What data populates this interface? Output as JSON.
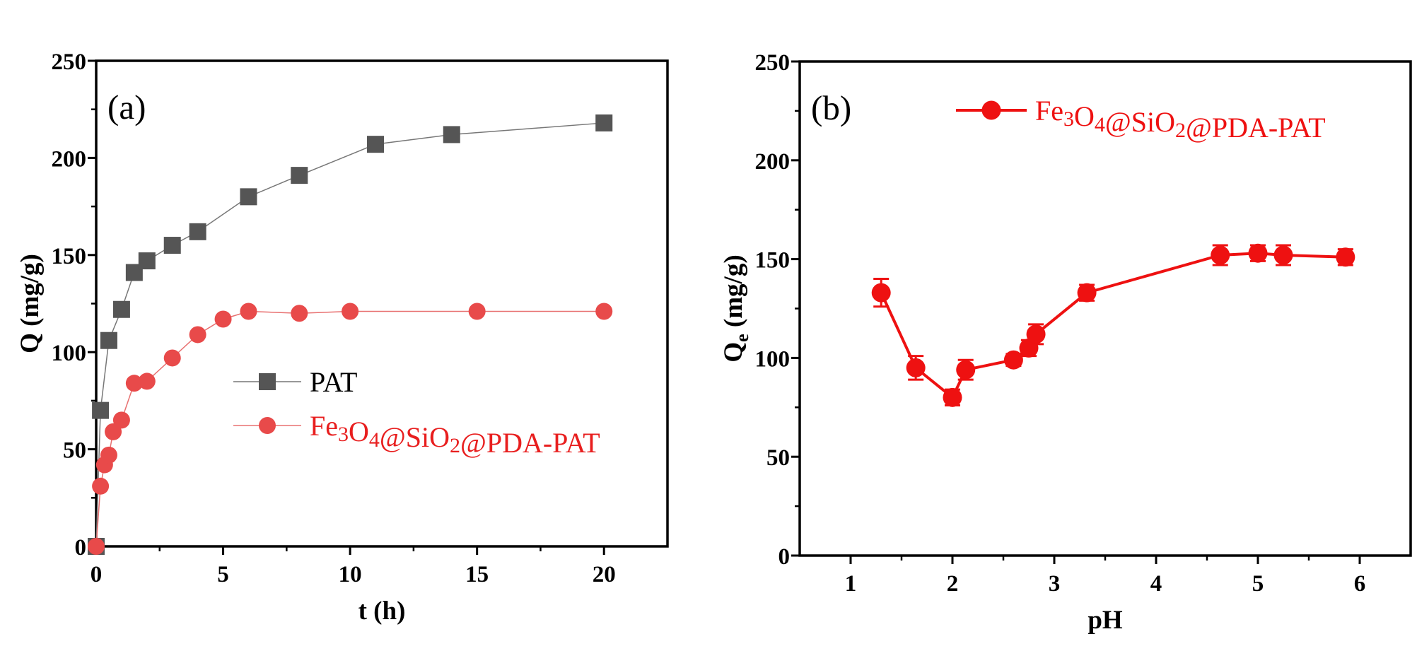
{
  "chart_data": [
    {
      "type": "line",
      "panel_label": "(a)",
      "xlabel": "t (h)",
      "ylabel": "Q (mg/g)",
      "xlim": [
        0,
        22.5
      ],
      "ylim": [
        0,
        250
      ],
      "xticks": [
        0,
        5,
        10,
        15,
        20
      ],
      "yticks": [
        0,
        50,
        100,
        150,
        200,
        250
      ],
      "legend_position": "center-right",
      "series": [
        {
          "name": "PAT",
          "legend_label": "PAT",
          "color": "#555555",
          "marker": "square",
          "x": [
            0,
            0.17,
            0.5,
            1,
            1.5,
            2,
            3,
            4,
            6,
            8,
            11,
            14,
            20
          ],
          "y": [
            0,
            70,
            106,
            122,
            141,
            147,
            155,
            162,
            180,
            191,
            207,
            212,
            218
          ]
        },
        {
          "name": "Fe3O4@SiO2@PDA-PAT",
          "legend_label": "Fe3O4@SiO2@PDA-PAT",
          "color": "#e84a4a",
          "marker": "circle",
          "x": [
            0,
            0.17,
            0.33,
            0.5,
            0.67,
            1,
            1.5,
            2,
            3,
            4,
            5,
            6,
            8,
            10,
            15,
            20
          ],
          "y": [
            0,
            31,
            42,
            47,
            59,
            65,
            84,
            85,
            97,
            109,
            117,
            121,
            120,
            121,
            121,
            121
          ]
        }
      ]
    },
    {
      "type": "line",
      "panel_label": "(b)",
      "xlabel": "pH",
      "ylabel_main": "Q",
      "ylabel_sub": "e",
      "ylabel_units": " (mg/g)",
      "xlim": [
        0.5,
        6.5
      ],
      "ylim": [
        0,
        250
      ],
      "xticks": [
        1,
        2,
        3,
        4,
        5,
        6
      ],
      "yticks": [
        0,
        50,
        100,
        150,
        200,
        250
      ],
      "legend_position": "top-right",
      "series": [
        {
          "name": "Fe3O4@SiO2@PDA-PAT",
          "legend_label": "Fe3O4@SiO2@PDA-PAT",
          "color": "#ee1111",
          "marker": "circle",
          "x": [
            1.3,
            1.64,
            2.0,
            2.13,
            2.6,
            2.75,
            2.82,
            3.32,
            4.63,
            5.0,
            5.25,
            5.86
          ],
          "y": [
            133,
            95,
            80,
            94,
            99,
            105,
            112,
            133,
            152,
            153,
            152,
            151
          ],
          "error": [
            7,
            6,
            4,
            5,
            3,
            4,
            5,
            4,
            5,
            4,
            5,
            4
          ]
        }
      ]
    }
  ]
}
